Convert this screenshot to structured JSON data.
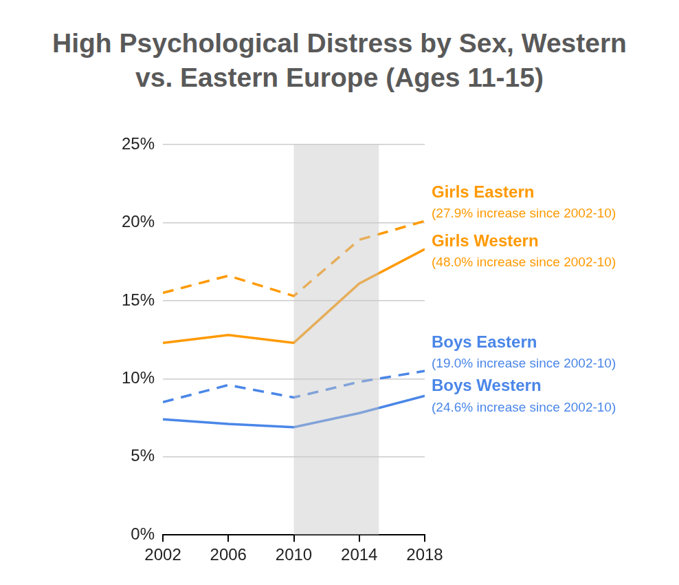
{
  "chart_data": {
    "type": "line",
    "title": "High Psychological Distress by Sex, Western vs. Eastern Europe (Ages 11-15)",
    "x": [
      2002,
      2006,
      2010,
      2014,
      2018
    ],
    "xlim": [
      2002,
      2018
    ],
    "xticks": [
      2002,
      2006,
      2010,
      2014,
      2018
    ],
    "ylim": [
      0,
      25
    ],
    "yticks": [
      {
        "value": 0,
        "label": "0%"
      },
      {
        "value": 5,
        "label": "5%"
      },
      {
        "value": 10,
        "label": "10%"
      },
      {
        "value": 15,
        "label": "15%"
      },
      {
        "value": 20,
        "label": "20%"
      },
      {
        "value": 25,
        "label": "25%"
      }
    ],
    "grid": true,
    "highlight": {
      "x": [
        2010,
        2015.2
      ]
    },
    "series": [
      {
        "name": "Girls Eastern",
        "annotation": "(27.9% increase since 2002-10)",
        "color": "#ff9900",
        "line_style": "dashed",
        "values": [
          15.5,
          16.6,
          15.3,
          18.9,
          20.1
        ]
      },
      {
        "name": "Girls Western",
        "annotation": "(48.0% increase since 2002-10)",
        "color": "#ff9900",
        "line_style": "solid",
        "values": [
          12.3,
          12.8,
          12.3,
          16.1,
          18.3
        ]
      },
      {
        "name": "Boys Eastern",
        "annotation": "(19.0% increase since 2002-10)",
        "color": "#4a86e8",
        "line_style": "dashed",
        "values": [
          8.5,
          9.6,
          8.8,
          9.8,
          10.5
        ]
      },
      {
        "name": "Boys Western",
        "annotation": "(24.6% increase since 2002-10)",
        "color": "#4a86e8",
        "line_style": "solid",
        "values": [
          7.4,
          7.1,
          6.9,
          7.8,
          8.9
        ]
      }
    ]
  }
}
